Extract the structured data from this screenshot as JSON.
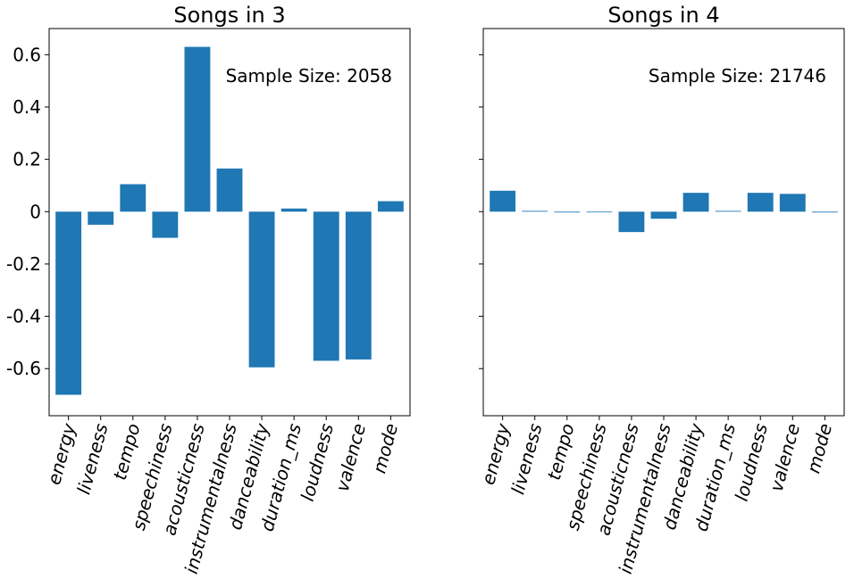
{
  "chart_data": [
    {
      "type": "bar",
      "title": "Songs in 3",
      "annotation": "Sample Size: 2058",
      "categories": [
        "energy",
        "liveness",
        "tempo",
        "speechiness",
        "acousticness",
        "instrumentalness",
        "danceability",
        "duration_ms",
        "loudness",
        "valence",
        "mode"
      ],
      "values": [
        -0.7,
        -0.05,
        0.105,
        -0.1,
        0.63,
        0.165,
        -0.595,
        0.012,
        -0.57,
        -0.565,
        0.04
      ],
      "ylim": [
        -0.78,
        0.7
      ],
      "yticks": [
        -0.6,
        -0.4,
        -0.2,
        0,
        0.2,
        0.4,
        0.6
      ],
      "ytick_labels": [
        "-0.6",
        "-0.4",
        "-0.2",
        "0",
        "0.2",
        "0.4",
        "0.6"
      ],
      "bar_color": "#1f77b4"
    },
    {
      "type": "bar",
      "title": "Songs in 4",
      "annotation": "Sample Size: 21746",
      "categories": [
        "energy",
        "liveness",
        "tempo",
        "speechiness",
        "acousticness",
        "instrumentalness",
        "danceability",
        "duration_ms",
        "loudness",
        "valence",
        "mode"
      ],
      "values": [
        0.08,
        0.003,
        -0.003,
        0.0,
        -0.078,
        -0.027,
        0.072,
        0.003,
        0.072,
        0.068,
        -0.003
      ],
      "ylim": [
        -0.78,
        0.7
      ],
      "yticks": [
        -0.6,
        -0.4,
        -0.2,
        0,
        0.2,
        0.4,
        0.6
      ],
      "ytick_labels": [],
      "bar_color": "#1f77b4"
    }
  ]
}
